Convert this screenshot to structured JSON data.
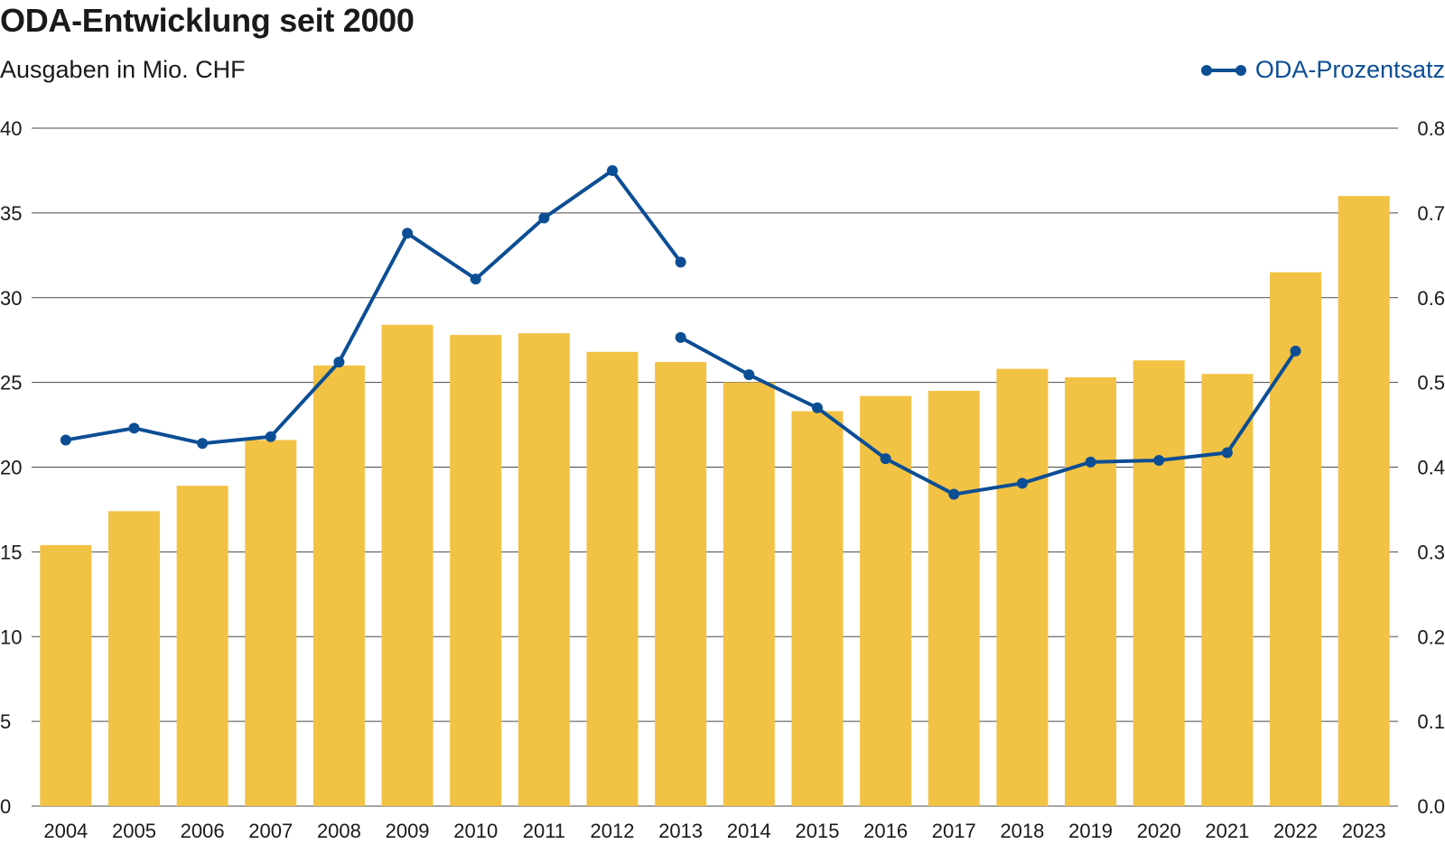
{
  "chart_data": {
    "type": "bar",
    "title": "ODA-Entwicklung seit 2000",
    "subtitle": "Ausgaben in Mio. CHF",
    "categories": [
      "2004",
      "2005",
      "2006",
      "2007",
      "2008",
      "2009",
      "2010",
      "2011",
      "2012",
      "2013",
      "2014",
      "2015",
      "2016",
      "2017",
      "2018",
      "2019",
      "2020",
      "2021",
      "2022",
      "2023"
    ],
    "series": [
      {
        "type": "bar",
        "axis": "left",
        "color": "#f2c244",
        "values": [
          15.4,
          17.4,
          18.9,
          21.6,
          26.0,
          28.4,
          27.8,
          27.9,
          26.8,
          26.2,
          25.0,
          23.3,
          24.2,
          24.5,
          25.8,
          25.3,
          26.3,
          25.5,
          31.5,
          36.0
        ]
      },
      {
        "type": "line",
        "axis": "right",
        "name": "ODA-Prozentsatz",
        "color": "#0c4e94",
        "values": [
          0.432,
          0.446,
          0.428,
          0.436,
          0.524,
          0.676,
          0.622,
          0.694,
          0.75,
          0.642,
          0.509,
          0.47,
          0.41,
          0.368,
          0.381,
          0.406,
          0.408,
          0.417,
          0.537,
          null
        ],
        "segments": [
          [
            0,
            9
          ],
          [
            9,
            18
          ]
        ],
        "break_value_2013": 0.553
      }
    ],
    "y_left": {
      "min": 0,
      "max": 40,
      "ticks": [
        0,
        5,
        10,
        15,
        20,
        25,
        30,
        35,
        40
      ]
    },
    "y_right": {
      "min": 0,
      "max": 0.8,
      "ticks": [
        "0.0",
        "0.1",
        "0.2",
        "0.3",
        "0.4",
        "0.5",
        "0.6",
        "0.7",
        "0.8"
      ]
    },
    "grid": true,
    "legend_position": "top-right"
  }
}
